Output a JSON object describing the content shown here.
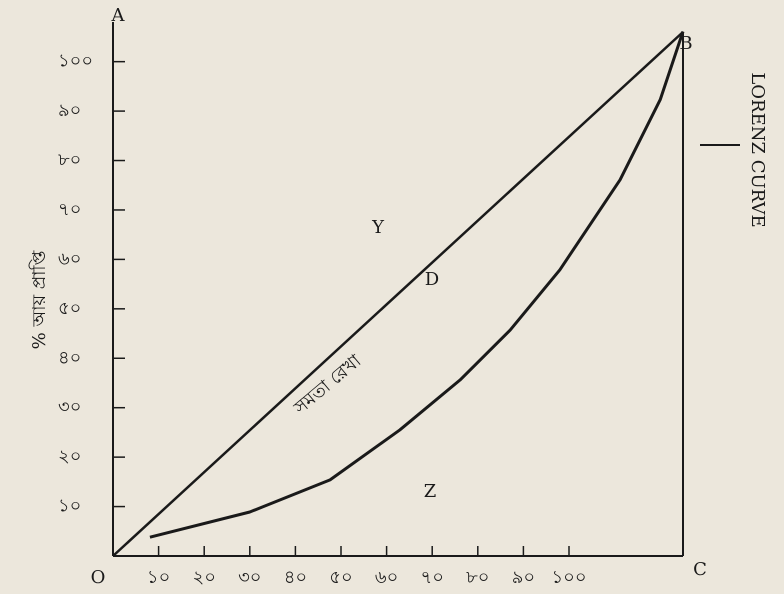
{
  "chart_data": {
    "type": "line",
    "y_label": "% আয় প্রাপ্তি",
    "annotations": [
      "A",
      "B",
      "C",
      "O",
      "Y",
      "D",
      "Z",
      "সমতা রেখা",
      "LORENZ CURVE"
    ],
    "xlim": [
      0,
      125
    ],
    "ylim": [
      0,
      106
    ],
    "xticks": [
      {
        "value": 10,
        "label": "১০"
      },
      {
        "value": 20,
        "label": "২০"
      },
      {
        "value": 30,
        "label": "৩০"
      },
      {
        "value": 40,
        "label": "৪০"
      },
      {
        "value": 50,
        "label": "৫০"
      },
      {
        "value": 60,
        "label": "৬০"
      },
      {
        "value": 70,
        "label": "৭০"
      },
      {
        "value": 80,
        "label": "৮০"
      },
      {
        "value": 90,
        "label": "৯০"
      },
      {
        "value": 100,
        "label": "১০০"
      }
    ],
    "yticks": [
      {
        "value": 10,
        "label": "১০"
      },
      {
        "value": 20,
        "label": "২০"
      },
      {
        "value": 30,
        "label": "৩০"
      },
      {
        "value": 40,
        "label": "৪০"
      },
      {
        "value": 50,
        "label": "৫০"
      },
      {
        "value": 60,
        "label": "৬০"
      },
      {
        "value": 70,
        "label": "৭০"
      },
      {
        "value": 80,
        "label": "৮০"
      },
      {
        "value": 90,
        "label": "৯০"
      },
      {
        "value": 100,
        "label": "১০০"
      }
    ],
    "series": [
      {
        "color": "#1a1a1a",
        "x": [
          0,
          125
        ],
        "values": [
          0,
          106
        ]
      },
      {
        "color": "#1a1a1a",
        "x": [
          8.1,
          30.0,
          47.6,
          62.9,
          76.1,
          87.1,
          98.0,
          111.2,
          120.0,
          125.0
        ],
        "values": [
          3.8,
          8.9,
          15.4,
          25.5,
          35.6,
          45.7,
          57.9,
          76.1,
          92.3,
          106.1
        ]
      }
    ]
  }
}
